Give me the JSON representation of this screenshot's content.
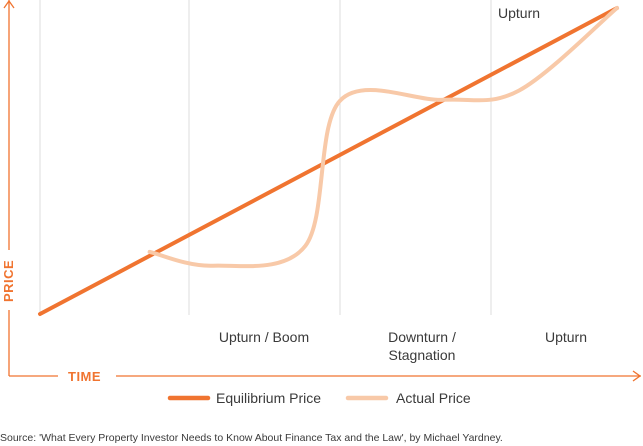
{
  "chart_data": {
    "type": "line",
    "title": "",
    "xlabel": "TIME",
    "ylabel": "PRICE",
    "phases": [
      "Upturn / Boom",
      "Downturn / Stagnation",
      "Upturn"
    ],
    "phase_lines": [
      "Downturn /",
      "Stagnation"
    ],
    "top_annotation": "Upturn",
    "grid": true,
    "legend_position": "bottom",
    "series": [
      {
        "name": "Equilibrium Price",
        "color": "#f07430",
        "points": [
          [
            0,
            0
          ],
          [
            1,
            1
          ]
        ]
      },
      {
        "name": "Actual Price",
        "color": "#f8c9a8",
        "points": [
          [
            0.19,
            0.203
          ],
          [
            0.3,
            0.158
          ],
          [
            0.46,
            0.223
          ],
          [
            0.52,
            0.697
          ],
          [
            0.7,
            0.7
          ],
          [
            0.83,
            0.73
          ],
          [
            1.0,
            1.0
          ]
        ]
      }
    ]
  },
  "source": "Source: 'What Every Property Investor Needs to Know About Finance Tax and the Law', by Michael Yardney."
}
